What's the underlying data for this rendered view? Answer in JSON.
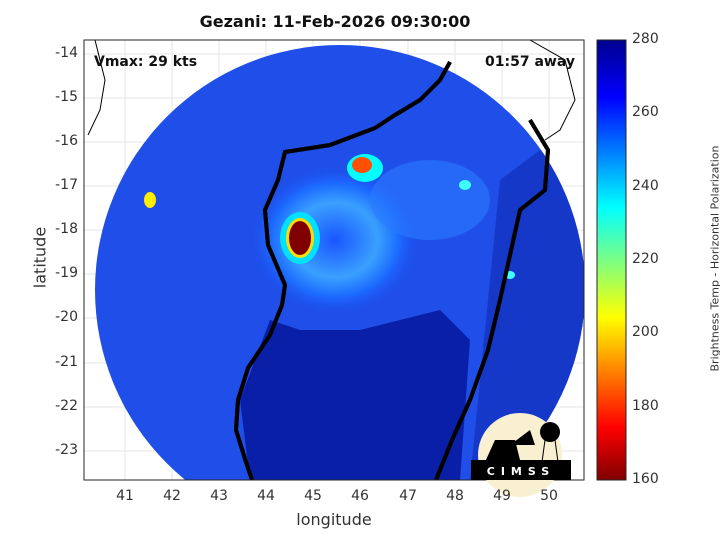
{
  "title": "Gezani: 11-Feb-2026 09:30:00",
  "vmax_label": "Vmax: 29 kts",
  "time_label": "01:57 away",
  "xlabel": "longitude",
  "ylabel": "latitude",
  "xticks": [
    "41",
    "42",
    "43",
    "44",
    "45",
    "46",
    "47",
    "48",
    "49",
    "50"
  ],
  "yticks": [
    "-14",
    "-15",
    "-16",
    "-17",
    "-18",
    "-19",
    "-20",
    "-21",
    "-22",
    "-23"
  ],
  "colorbar": {
    "label": "Brightness Temp - Horizontal Polarization",
    "ticks": [
      "280",
      "260",
      "240",
      "220",
      "200",
      "180",
      "160"
    ],
    "range": [
      160,
      280
    ]
  },
  "logo": "CIMSS",
  "colors": {
    "cold": "#7f0000",
    "warm": "#00008f",
    "mid": "#00ffff"
  }
}
